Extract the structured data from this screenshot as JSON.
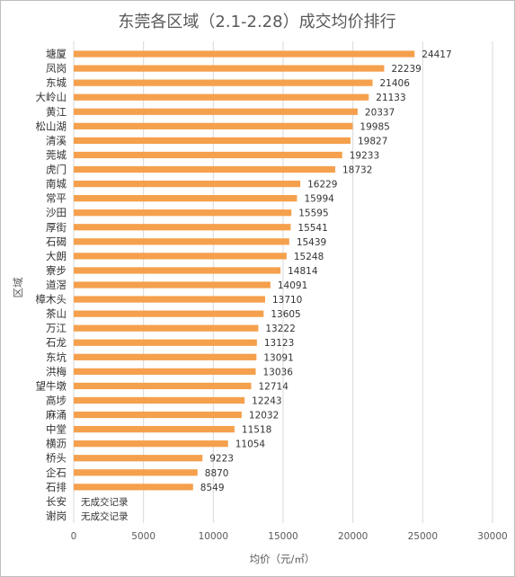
{
  "chart_data": {
    "type": "bar",
    "orientation": "horizontal",
    "title": "东莞各区域（2.1-2.28）成交均价排行",
    "xlabel": "均价（元/㎡）",
    "ylabel": "区域",
    "xlim": [
      0,
      30000
    ],
    "xticks": [
      "0",
      "5000",
      "10000",
      "15000",
      "20000",
      "25000",
      "30000"
    ],
    "grid": true,
    "bar_color": "#f5a04d",
    "categories": [
      "塘厦",
      "凤岗",
      "东城",
      "大岭山",
      "黄江",
      "松山湖",
      "清溪",
      "莞城",
      "虎门",
      "南城",
      "常平",
      "沙田",
      "厚街",
      "石碣",
      "大朗",
      "寮步",
      "道滘",
      "樟木头",
      "茶山",
      "万江",
      "石龙",
      "东坑",
      "洪梅",
      "望牛墩",
      "高埗",
      "麻涌",
      "中堂",
      "横沥",
      "桥头",
      "企石",
      "石排",
      "长安",
      "谢岗"
    ],
    "values": [
      24417,
      22239,
      21406,
      21133,
      20337,
      19985,
      19827,
      19233,
      18732,
      16229,
      15994,
      15595,
      15541,
      15439,
      15248,
      14814,
      14091,
      13710,
      13605,
      13222,
      13123,
      13091,
      13036,
      12714,
      12243,
      12032,
      11518,
      11054,
      9223,
      8870,
      8549,
      null,
      null
    ],
    "labels": [
      "24417",
      "22239",
      "21406",
      "21133",
      "20337",
      "19985",
      "19827",
      "19233",
      "18732",
      "16229",
      "15994",
      "15595",
      "15541",
      "15439",
      "15248",
      "14814",
      "14091",
      "13710",
      "13605",
      "13222",
      "13123",
      "13091",
      "13036",
      "12714",
      "12243",
      "12032",
      "11518",
      "11054",
      "9223",
      "8870",
      "8549",
      "无成交记录",
      "无成交记录"
    ]
  }
}
